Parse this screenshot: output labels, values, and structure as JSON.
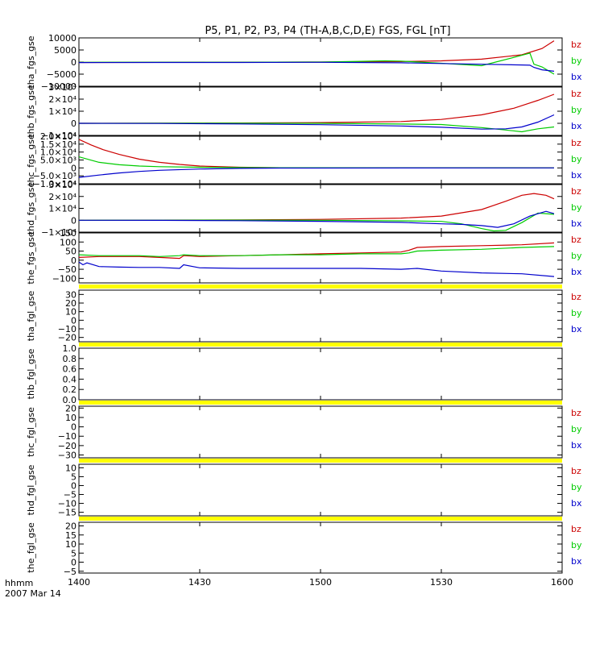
{
  "figure": {
    "title": "P5, P1, P2, P3, P4 (TH-A,B,C,D,E) FGS, FGL [nT]",
    "time_label_1": "hhmm",
    "time_label_2": "2007 Mar 14"
  },
  "colors": {
    "bx": "#0000cc",
    "by": "#00cc00",
    "bz": "#cc0000",
    "gap_band": "#ffff00",
    "axes": "#000000"
  },
  "chart_data": [
    {
      "type": "line",
      "ylabel": "tha_fgs_gse",
      "ylim": [
        -10000,
        10000
      ],
      "yticks": [
        10000,
        5000,
        0,
        -5000,
        -10000
      ],
      "ytick_labels": [
        "10000",
        "5000",
        "0",
        "−5000",
        "−10000"
      ],
      "legend": [
        "bz",
        "by",
        "bx"
      ],
      "legend_placement": "right",
      "series": [
        {
          "name": "bz",
          "color": "#cc0000",
          "x": [
            0,
            20,
            40,
            60,
            80,
            90,
            100,
            110,
            115,
            118
          ],
          "y": [
            -150,
            -130,
            -80,
            0,
            200,
            500,
            1200,
            3000,
            5600,
            8800
          ]
        },
        {
          "name": "by",
          "color": "#00cc00",
          "x": [
            0,
            20,
            40,
            60,
            70,
            76,
            80,
            90,
            100,
            110,
            112,
            113,
            115,
            118
          ],
          "y": [
            -100,
            -80,
            -50,
            0,
            300,
            500,
            400,
            -500,
            -1500,
            2800,
            3700,
            -900,
            -2000,
            -5000
          ]
        },
        {
          "name": "bx",
          "color": "#0000cc",
          "x": [
            0,
            20,
            40,
            60,
            80,
            90,
            100,
            110,
            112,
            113,
            115,
            118
          ],
          "y": [
            -200,
            -180,
            -150,
            -100,
            -300,
            -600,
            -900,
            -1200,
            -1300,
            -2200,
            -3200,
            -3800
          ]
        }
      ]
    },
    {
      "type": "line",
      "ylabel": "thb_fgs_gse",
      "ylim": [
        -10000,
        30000
      ],
      "yticks": [
        30000,
        20000,
        10000,
        0,
        -10000
      ],
      "ytick_labels": [
        "3×10⁴",
        "2×10⁴",
        "1×10⁴",
        "0",
        "−1×10⁴"
      ],
      "legend": [
        "bz",
        "by",
        "bx"
      ],
      "legend_placement": "right",
      "series": [
        {
          "name": "bz",
          "color": "#cc0000",
          "x": [
            0,
            20,
            40,
            60,
            80,
            90,
            100,
            108,
            114,
            118
          ],
          "y": [
            0,
            100,
            300,
            600,
            1500,
            3200,
            7000,
            12500,
            19000,
            24000
          ]
        },
        {
          "name": "by",
          "color": "#00cc00",
          "x": [
            0,
            20,
            40,
            60,
            80,
            90,
            100,
            106,
            110,
            114,
            118
          ],
          "y": [
            0,
            50,
            100,
            0,
            -600,
            -1000,
            -3500,
            -5500,
            -7000,
            -4500,
            -3000
          ]
        },
        {
          "name": "bx",
          "color": "#0000cc",
          "x": [
            0,
            20,
            40,
            60,
            80,
            90,
            100,
            106,
            110,
            114,
            118
          ],
          "y": [
            0,
            -100,
            -500,
            -1100,
            -2200,
            -3300,
            -4800,
            -4500,
            -3000,
            1000,
            7000
          ]
        }
      ]
    },
    {
      "type": "line",
      "ylabel": "thc_fgs_gse",
      "ylim": [
        -10000,
        20000
      ],
      "yticks": [
        20000,
        15000,
        10000,
        5000,
        0,
        -5000,
        -10000
      ],
      "ytick_labels": [
        "2.0×10⁴",
        "1.5×10⁴",
        "1.0×10⁴",
        "5.0×10³",
        "0",
        "−5.0×10³",
        "−1.0×10⁴"
      ],
      "legend": [
        "bz",
        "by",
        "bx"
      ],
      "legend_placement": "right",
      "series": [
        {
          "name": "bz",
          "color": "#cc0000",
          "x": [
            0,
            3,
            6,
            10,
            15,
            20,
            25,
            30,
            40,
            50,
            60,
            118
          ],
          "y": [
            18000,
            14500,
            11500,
            8500,
            5500,
            3500,
            2200,
            1200,
            400,
            100,
            0,
            0
          ]
        },
        {
          "name": "by",
          "color": "#00cc00",
          "x": [
            0,
            5,
            10,
            15,
            20,
            30,
            40,
            50,
            118
          ],
          "y": [
            7000,
            3500,
            2000,
            1200,
            800,
            400,
            200,
            100,
            0
          ]
        },
        {
          "name": "bx",
          "color": "#0000cc",
          "x": [
            0,
            5,
            10,
            15,
            20,
            30,
            40,
            50,
            118
          ],
          "y": [
            -6000,
            -4500,
            -3200,
            -2200,
            -1500,
            -700,
            -300,
            -100,
            0
          ]
        }
      ]
    },
    {
      "type": "line",
      "ylabel": "thd_fgs_gse",
      "ylim": [
        -10000,
        30000
      ],
      "yticks": [
        30000,
        20000,
        10000,
        0,
        -10000
      ],
      "ytick_labels": [
        "3×10⁴",
        "2×10⁴",
        "1×10⁴",
        "0",
        "−1×10⁴"
      ],
      "legend": [
        "bz",
        "by",
        "bx"
      ],
      "legend_placement": "right",
      "series": [
        {
          "name": "bz",
          "color": "#cc0000",
          "x": [
            0,
            20,
            40,
            60,
            80,
            90,
            100,
            106,
            110,
            113,
            116,
            118
          ],
          "y": [
            0,
            100,
            300,
            700,
            1800,
            3500,
            9000,
            16000,
            21000,
            22500,
            21000,
            18000
          ]
        },
        {
          "name": "by",
          "color": "#00cc00",
          "x": [
            0,
            20,
            40,
            60,
            80,
            90,
            95,
            100,
            103,
            106,
            110,
            114,
            118
          ],
          "y": [
            0,
            50,
            100,
            0,
            -500,
            -1000,
            -3000,
            -7000,
            -9000,
            -8500,
            -2000,
            6000,
            5000
          ]
        },
        {
          "name": "bx",
          "color": "#0000cc",
          "x": [
            0,
            20,
            40,
            60,
            80,
            90,
            95,
            100,
            104,
            108,
            112,
            116,
            118
          ],
          "y": [
            0,
            -100,
            -400,
            -900,
            -1800,
            -3000,
            -3500,
            -4500,
            -6000,
            -3000,
            3500,
            7500,
            5500
          ]
        }
      ]
    },
    {
      "type": "line",
      "ylabel": "the_fgs_gse",
      "ylim": [
        -125,
        150
      ],
      "yticks": [
        150,
        100,
        50,
        0,
        -50,
        -100
      ],
      "ytick_labels": [
        "150",
        "100",
        "50",
        "0",
        "−50",
        "−100"
      ],
      "legend": [
        "bz",
        "by",
        "bx"
      ],
      "legend_placement": "right",
      "series": [
        {
          "name": "bz",
          "color": "#cc0000",
          "x": [
            0,
            5,
            10,
            15,
            20,
            25,
            26,
            30,
            40,
            50,
            60,
            70,
            80,
            82,
            84,
            90,
            100,
            110,
            118
          ],
          "y": [
            15,
            20,
            20,
            20,
            15,
            10,
            25,
            20,
            25,
            30,
            35,
            40,
            45,
            55,
            70,
            75,
            80,
            85,
            95
          ]
        },
        {
          "name": "by",
          "color": "#00cc00",
          "x": [
            0,
            5,
            10,
            15,
            20,
            25,
            26,
            30,
            40,
            50,
            60,
            70,
            80,
            82,
            84,
            90,
            100,
            110,
            118
          ],
          "y": [
            30,
            25,
            25,
            25,
            20,
            25,
            30,
            25,
            25,
            30,
            30,
            35,
            35,
            40,
            50,
            55,
            60,
            70,
            75
          ]
        },
        {
          "name": "bx",
          "color": "#0000cc",
          "x": [
            0,
            1,
            2,
            5,
            10,
            15,
            20,
            25,
            26,
            30,
            40,
            50,
            60,
            70,
            80,
            84,
            90,
            100,
            110,
            118
          ],
          "y": [
            -10,
            -25,
            -15,
            -35,
            -38,
            -40,
            -40,
            -45,
            -25,
            -42,
            -45,
            -45,
            -45,
            -45,
            -50,
            -45,
            -60,
            -70,
            -75,
            -90
          ]
        }
      ]
    },
    {
      "type": "line",
      "ylabel": "tha_fgl_gse",
      "ylim": [
        -25,
        35
      ],
      "yticks": [
        30,
        20,
        10,
        0,
        -10,
        -20
      ],
      "ytick_labels": [
        "30",
        "20",
        "10",
        "0",
        "−10",
        "−20"
      ],
      "legend": [
        "bz",
        "by",
        "bx"
      ],
      "legend_placement": "right",
      "series": []
    },
    {
      "type": "line",
      "ylabel": "thb_fgl_gse",
      "ylim": [
        0.0,
        1.0
      ],
      "yticks": [
        1.0,
        0.8,
        0.6,
        0.4,
        0.2,
        0.0
      ],
      "ytick_labels": [
        "1.0",
        "0.8",
        "0.6",
        "0.4",
        "0.2",
        "0.0"
      ],
      "legend": [],
      "legend_placement": "right",
      "series": []
    },
    {
      "type": "line",
      "ylabel": "thc_fgl_gse",
      "ylim": [
        -33,
        22
      ],
      "yticks": [
        20,
        10,
        0,
        -10,
        -20,
        -30
      ],
      "ytick_labels": [
        "20",
        "10",
        "0",
        "−10",
        "−20",
        "−30"
      ],
      "legend": [
        "bz",
        "by",
        "bx"
      ],
      "legend_placement": "right",
      "series": []
    },
    {
      "type": "line",
      "ylabel": "thd_fgl_gse",
      "ylim": [
        -17,
        12
      ],
      "yticks": [
        10,
        5,
        0,
        -5,
        -10,
        -15
      ],
      "ytick_labels": [
        "10",
        "5",
        "0",
        "−5",
        "−10",
        "−15"
      ],
      "legend": [
        "bz",
        "by",
        "bx"
      ],
      "legend_placement": "right",
      "series": []
    },
    {
      "type": "line",
      "ylabel": "the_fgl_gse",
      "ylim": [
        -6,
        22
      ],
      "yticks": [
        20,
        15,
        10,
        5,
        0,
        -5
      ],
      "ytick_labels": [
        "20",
        "15",
        "10",
        "5",
        "0",
        "−5"
      ],
      "legend": [
        "bz",
        "by",
        "bx"
      ],
      "legend_placement": "right",
      "series": []
    }
  ],
  "x_axis": {
    "xlim": [
      0,
      120
    ],
    "tick_values": [
      0,
      30,
      60,
      90,
      120
    ],
    "tick_labels": [
      "1400",
      "1430",
      "1500",
      "1530",
      "1600"
    ]
  }
}
